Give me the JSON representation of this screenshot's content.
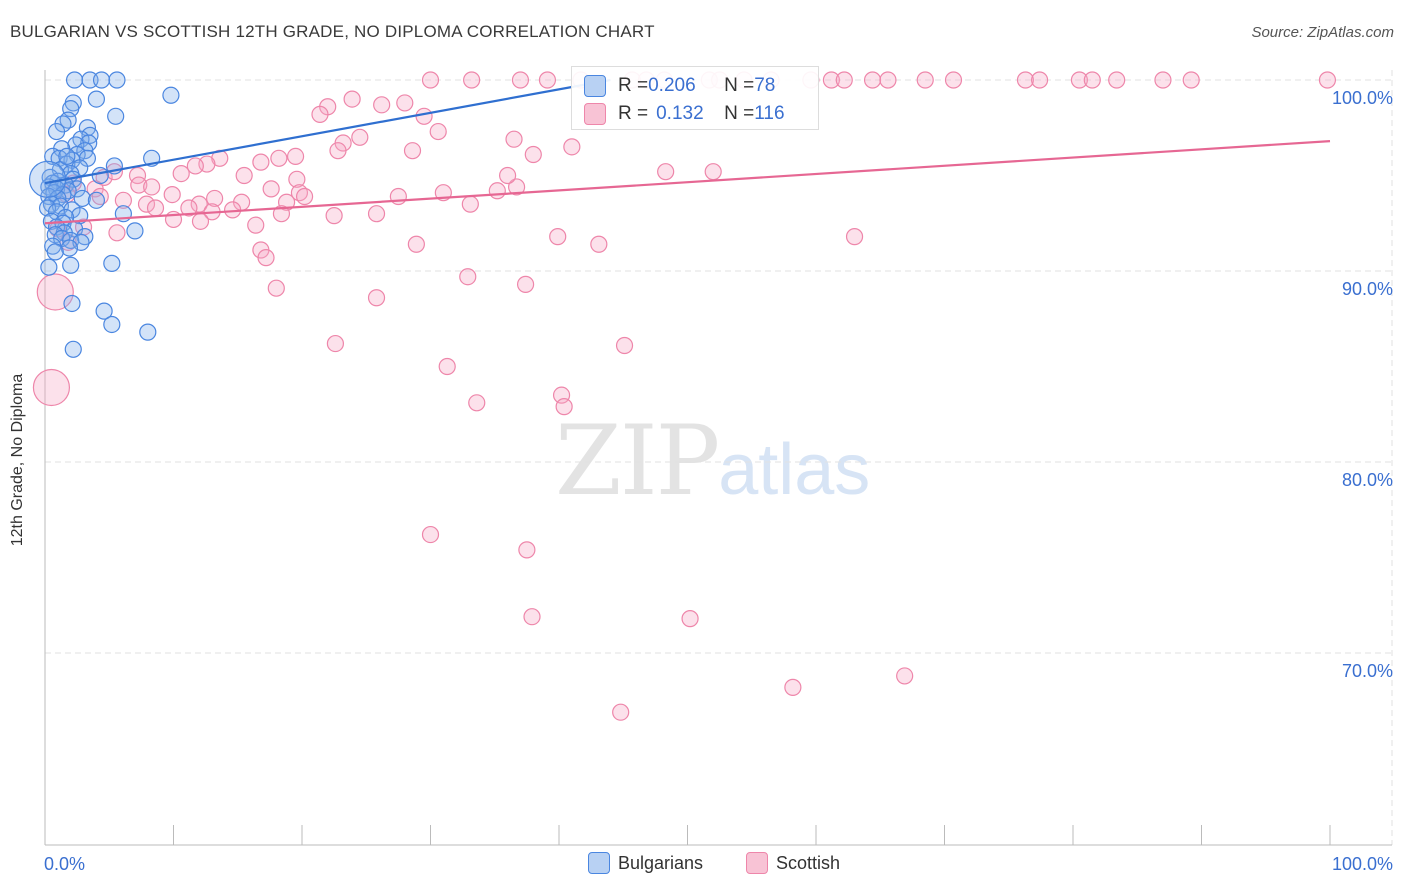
{
  "title": "BULGARIAN VS SCOTTISH 12TH GRADE, NO DIPLOMA CORRELATION CHART",
  "source": "Source: ZipAtlas.com",
  "watermark": {
    "zip": "ZIP",
    "atlas": "atlas"
  },
  "legend_top": [
    {
      "r_label": "R = ",
      "r_value": "0.206",
      "n_label": "N = ",
      "n_value": "78"
    },
    {
      "r_label": "R = ",
      "r_value": "0.132",
      "n_label": "N = ",
      "n_value": "116"
    }
  ],
  "chart_data": {
    "type": "scatter",
    "title": "BULGARIAN VS SCOTTISH 12TH GRADE, NO DIPLOMA CORRELATION CHART",
    "xlabel": "",
    "ylabel": "12th Grade, No Diploma",
    "xlim": [
      0,
      100
    ],
    "ylim": [
      60.5,
      102
    ],
    "x_tick_labels": [
      "0.0%",
      "100.0%"
    ],
    "y_ticks": [
      70,
      80,
      90,
      100
    ],
    "y_tick_labels": [
      "70.0%",
      "80.0%",
      "90.0%",
      "100.0%"
    ],
    "grid": true,
    "legend_position": "bottom-center",
    "colors": {
      "Bulgarians": "#4a86e0",
      "Scottish": "#ee86aa",
      "blue_line": "#2f6fd0",
      "pink_line": "#e66793"
    },
    "series": [
      {
        "name": "Bulgarians",
        "r": 0.206,
        "n": 78,
        "trend": {
          "x": [
            0,
            44
          ],
          "y": [
            94.6,
            100.0
          ]
        },
        "points": [
          [
            2.3,
            100
          ],
          [
            3.5,
            100
          ],
          [
            4.4,
            100
          ],
          [
            5.6,
            100
          ],
          [
            9.8,
            99.2
          ],
          [
            4.0,
            99
          ],
          [
            2.2,
            98.8
          ],
          [
            2.0,
            98.5
          ],
          [
            5.5,
            98.1
          ],
          [
            1.8,
            97.9
          ],
          [
            1.4,
            97.7
          ],
          [
            3.3,
            97.5
          ],
          [
            0.9,
            97.3
          ],
          [
            3.5,
            97.1
          ],
          [
            2.8,
            96.9
          ],
          [
            3.4,
            96.7
          ],
          [
            2.4,
            96.6
          ],
          [
            1.3,
            96.4
          ],
          [
            3.1,
            96.3
          ],
          [
            2.5,
            96.1
          ],
          [
            0.6,
            96.0
          ],
          [
            1.1,
            95.9
          ],
          [
            3.3,
            95.9
          ],
          [
            8.3,
            95.9
          ],
          [
            2.1,
            95.8
          ],
          [
            1.7,
            95.6
          ],
          [
            5.4,
            95.5
          ],
          [
            2.7,
            95.4
          ],
          [
            1.2,
            95.3
          ],
          [
            2.0,
            95.1
          ],
          [
            4.3,
            95.0
          ],
          [
            0.4,
            94.9
          ],
          [
            2.2,
            94.8
          ],
          [
            1.0,
            94.7
          ],
          [
            0.6,
            94.6
          ],
          [
            1.6,
            94.5
          ],
          [
            0.3,
            94.4
          ],
          [
            0.9,
            94.3
          ],
          [
            2.5,
            94.3
          ],
          [
            1.8,
            94.2
          ],
          [
            0.7,
            94.1
          ],
          [
            1.4,
            94.0
          ],
          [
            0.3,
            93.9
          ],
          [
            1.0,
            93.8
          ],
          [
            2.9,
            93.8
          ],
          [
            4.0,
            93.7
          ],
          [
            0.5,
            93.5
          ],
          [
            1.2,
            93.4
          ],
          [
            0.2,
            93.3
          ],
          [
            2.1,
            93.2
          ],
          [
            0.9,
            93.1
          ],
          [
            6.1,
            93.0
          ],
          [
            2.7,
            92.9
          ],
          [
            1.6,
            92.8
          ],
          [
            0.5,
            92.6
          ],
          [
            1.4,
            92.5
          ],
          [
            0.9,
            92.3
          ],
          [
            2.3,
            92.2
          ],
          [
            7.0,
            92.1
          ],
          [
            1.5,
            92.0
          ],
          [
            0.8,
            91.9
          ],
          [
            3.1,
            91.8
          ],
          [
            1.3,
            91.7
          ],
          [
            2.0,
            91.6
          ],
          [
            2.8,
            91.5
          ],
          [
            0.6,
            91.3
          ],
          [
            1.9,
            91.2
          ],
          [
            0.8,
            91.0
          ],
          [
            5.2,
            90.4
          ],
          [
            2.0,
            90.3
          ],
          [
            0.3,
            90.2
          ],
          [
            2.1,
            88.3
          ],
          [
            4.6,
            87.9
          ],
          [
            5.2,
            87.2
          ],
          [
            8.0,
            86.8
          ],
          [
            2.2,
            85.9
          ],
          [
            0.2,
            94.8
          ],
          [
            1.7,
            96.0
          ]
        ]
      },
      {
        "name": "Scottish",
        "r": 0.132,
        "n": 116,
        "trend": {
          "x": [
            0,
            100
          ],
          "y": [
            92.5,
            96.8
          ]
        },
        "points": [
          [
            30,
            100
          ],
          [
            33.2,
            100
          ],
          [
            37,
            100
          ],
          [
            39.1,
            100
          ],
          [
            41.7,
            100
          ],
          [
            45.7,
            100
          ],
          [
            46.8,
            100
          ],
          [
            48.2,
            100
          ],
          [
            51.7,
            100
          ],
          [
            52.5,
            100
          ],
          [
            54.4,
            100
          ],
          [
            56.5,
            100
          ],
          [
            59.6,
            100
          ],
          [
            61.2,
            100
          ],
          [
            62.2,
            100
          ],
          [
            64.4,
            100
          ],
          [
            65.6,
            100
          ],
          [
            68.5,
            100
          ],
          [
            70.7,
            100
          ],
          [
            76.3,
            100
          ],
          [
            77.4,
            100
          ],
          [
            80.5,
            100
          ],
          [
            81.5,
            100
          ],
          [
            83.4,
            100
          ],
          [
            87.0,
            100
          ],
          [
            89.2,
            100
          ],
          [
            99.8,
            100
          ],
          [
            23.9,
            99.0
          ],
          [
            22.0,
            98.6
          ],
          [
            26.2,
            98.7
          ],
          [
            28.0,
            98.8
          ],
          [
            21.4,
            98.2
          ],
          [
            29.5,
            98.1
          ],
          [
            30.6,
            97.3
          ],
          [
            24.5,
            97.0
          ],
          [
            36.5,
            96.9
          ],
          [
            23.2,
            96.7
          ],
          [
            41.0,
            96.5
          ],
          [
            22.8,
            96.3
          ],
          [
            28.6,
            96.3
          ],
          [
            19.5,
            96.0
          ],
          [
            13.6,
            95.9
          ],
          [
            18.2,
            95.9
          ],
          [
            38.0,
            96.1
          ],
          [
            12.6,
            95.6
          ],
          [
            16.8,
            95.7
          ],
          [
            11.7,
            95.5
          ],
          [
            10.6,
            95.1
          ],
          [
            7.2,
            95.0
          ],
          [
            4.6,
            94.9
          ],
          [
            15.5,
            95.0
          ],
          [
            19.6,
            94.8
          ],
          [
            5.4,
            95.2
          ],
          [
            7.3,
            94.5
          ],
          [
            2.2,
            94.6
          ],
          [
            3.9,
            94.3
          ],
          [
            8.3,
            94.4
          ],
          [
            17.6,
            94.3
          ],
          [
            19.8,
            94.1
          ],
          [
            1.7,
            94.0
          ],
          [
            4.3,
            93.9
          ],
          [
            9.9,
            94.0
          ],
          [
            13.2,
            93.8
          ],
          [
            20.2,
            93.9
          ],
          [
            27.5,
            93.9
          ],
          [
            31.0,
            94.1
          ],
          [
            6.1,
            93.7
          ],
          [
            7.9,
            93.5
          ],
          [
            12.0,
            93.5
          ],
          [
            15.3,
            93.6
          ],
          [
            18.8,
            93.6
          ],
          [
            36.7,
            94.4
          ],
          [
            35.2,
            94.2
          ],
          [
            33.1,
            93.5
          ],
          [
            8.6,
            93.3
          ],
          [
            11.2,
            93.3
          ],
          [
            13.0,
            93.1
          ],
          [
            14.6,
            93.2
          ],
          [
            18.4,
            93.0
          ],
          [
            22.5,
            92.9
          ],
          [
            25.8,
            93.0
          ],
          [
            10.0,
            92.7
          ],
          [
            12.1,
            92.6
          ],
          [
            3.0,
            92.3
          ],
          [
            1.0,
            92.2
          ],
          [
            16.4,
            92.4
          ],
          [
            5.6,
            92.0
          ],
          [
            39.9,
            91.8
          ],
          [
            28.9,
            91.4
          ],
          [
            43.1,
            91.4
          ],
          [
            16.8,
            91.1
          ],
          [
            17.2,
            90.7
          ],
          [
            1.8,
            91.5
          ],
          [
            32.9,
            89.7
          ],
          [
            37.4,
            89.3
          ],
          [
            18.0,
            89.1
          ],
          [
            25.8,
            88.6
          ],
          [
            0.8,
            88.9
          ],
          [
            0.5,
            83.9
          ],
          [
            22.6,
            86.2
          ],
          [
            45.1,
            86.1
          ],
          [
            31.3,
            85.0
          ],
          [
            33.6,
            83.1
          ],
          [
            40.2,
            83.5
          ],
          [
            40.4,
            82.9
          ],
          [
            30.0,
            76.2
          ],
          [
            37.5,
            75.4
          ],
          [
            37.9,
            71.9
          ],
          [
            50.2,
            71.8
          ],
          [
            58.2,
            68.2
          ],
          [
            66.9,
            68.8
          ],
          [
            44.8,
            66.9
          ],
          [
            48.3,
            95.2
          ],
          [
            52.0,
            95.2
          ],
          [
            36.0,
            95.0
          ],
          [
            63.0,
            91.8
          ]
        ]
      }
    ]
  },
  "legend_bottom": [
    {
      "label": "Bulgarians"
    },
    {
      "label": "Scottish"
    }
  ]
}
